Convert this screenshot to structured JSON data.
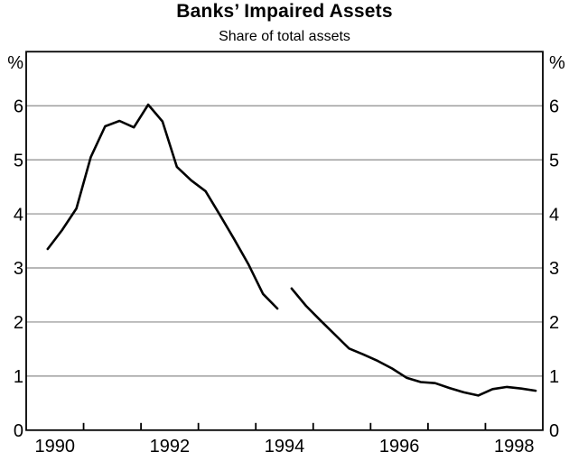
{
  "chart_data": {
    "type": "line",
    "title": "Banks’ Impaired Assets",
    "subtitle": "Share of total assets",
    "unit": "%",
    "xlim": [
      1990,
      1999
    ],
    "ylim": [
      0,
      7
    ],
    "yticks": [
      0,
      1,
      2,
      3,
      4,
      5,
      6
    ],
    "xticks": [
      1991,
      1992,
      1993,
      1994,
      1995,
      1996,
      1997,
      1998
    ],
    "xlabels": [
      1990,
      1992,
      1994,
      1996,
      1998
    ],
    "grid": "horizontal",
    "legend": "none",
    "colors": {
      "line": "#000000",
      "grid": "#8c8c8c",
      "axis": "#000000",
      "background": "#ffffff"
    },
    "series": [
      {
        "name": "impaired-assets-1990-to-mid-1994",
        "points": [
          [
            1990.375,
            3.35
          ],
          [
            1990.625,
            3.7
          ],
          [
            1990.875,
            4.1
          ],
          [
            1991.125,
            5.05
          ],
          [
            1991.375,
            5.62
          ],
          [
            1991.625,
            5.72
          ],
          [
            1991.875,
            5.6
          ],
          [
            1992.125,
            6.02
          ],
          [
            1992.375,
            5.71
          ],
          [
            1992.625,
            4.87
          ],
          [
            1992.875,
            4.62
          ],
          [
            1993.125,
            4.42
          ],
          [
            1993.375,
            3.98
          ],
          [
            1993.625,
            3.53
          ],
          [
            1993.875,
            3.06
          ],
          [
            1994.125,
            2.52
          ],
          [
            1994.375,
            2.25
          ]
        ]
      },
      {
        "name": "impaired-assets-mid-1994-to-1998",
        "points": [
          [
            1994.625,
            2.62
          ],
          [
            1994.875,
            2.3
          ],
          [
            1995.125,
            2.03
          ],
          [
            1995.375,
            1.77
          ],
          [
            1995.625,
            1.51
          ],
          [
            1995.875,
            1.4
          ],
          [
            1996.125,
            1.28
          ],
          [
            1996.375,
            1.14
          ],
          [
            1996.625,
            0.97
          ],
          [
            1996.875,
            0.89
          ],
          [
            1997.125,
            0.87
          ],
          [
            1997.375,
            0.78
          ],
          [
            1997.625,
            0.7
          ],
          [
            1997.875,
            0.64
          ],
          [
            1998.125,
            0.76
          ],
          [
            1998.375,
            0.8
          ],
          [
            1998.625,
            0.77
          ],
          [
            1998.875,
            0.73
          ]
        ]
      }
    ]
  }
}
